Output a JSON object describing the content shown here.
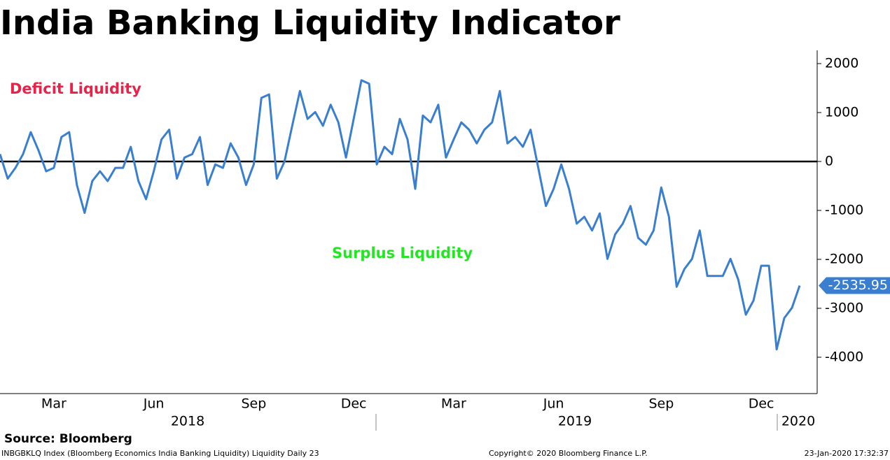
{
  "chart_data": {
    "type": "line",
    "title": "India Banking Liquidity Indicator",
    "annotations": [
      "Deficit Liquidity",
      "Surplus Liquidity"
    ],
    "categories": [
      null,
      null,
      null,
      null,
      null,
      null,
      null,
      "Mar",
      null,
      null,
      null,
      null,
      null,
      null,
      null,
      null,
      null,
      null,
      null,
      null,
      "Jun",
      null,
      null,
      null,
      null,
      null,
      null,
      null,
      null,
      null,
      null,
      null,
      null,
      "Sep",
      null,
      null,
      null,
      null,
      null,
      null,
      null,
      null,
      null,
      null,
      null,
      null,
      "Dec",
      null,
      null,
      null,
      null,
      null,
      null,
      null,
      null,
      null,
      null,
      null,
      null,
      "Mar",
      null,
      null,
      null,
      null,
      null,
      null,
      null,
      null,
      null,
      null,
      null,
      null,
      "Jun",
      null,
      null,
      null,
      null,
      null,
      null,
      null,
      null,
      null,
      null,
      null,
      null,
      null,
      "Sep",
      null,
      null,
      null,
      null,
      null,
      null,
      null,
      null,
      null,
      null,
      null,
      null,
      "Dec",
      null,
      null,
      null,
      null,
      null
    ],
    "year_labels": [
      "2018",
      "2019",
      "2020"
    ],
    "values": [
      150,
      -350,
      -130,
      150,
      600,
      230,
      -200,
      -130,
      500,
      600,
      -480,
      -1050,
      -400,
      -200,
      -400,
      -130,
      -130,
      300,
      -400,
      -770,
      -200,
      450,
      650,
      -350,
      80,
      150,
      500,
      -480,
      -60,
      -130,
      370,
      80,
      -480,
      -60,
      1300,
      1370,
      -350,
      0,
      730,
      1440,
      870,
      1010,
      730,
      1160,
      800,
      80,
      870,
      1660,
      1590,
      -60,
      300,
      150,
      870,
      450,
      -560,
      940,
      800,
      1160,
      80,
      450,
      800,
      650,
      370,
      650,
      800,
      1440,
      370,
      500,
      300,
      650,
      -130,
      -910,
      -560,
      -60,
      -560,
      -1270,
      -1130,
      -1410,
      -1060,
      -1990,
      -1490,
      -1270,
      -910,
      -1560,
      -1700,
      -1410,
      -530,
      -1130,
      -2560,
      -2200,
      -1990,
      -1410,
      -2340,
      -2340,
      -2340,
      -1990,
      -2410,
      -3130,
      -2840,
      -2130,
      -2130,
      -3840,
      -3200,
      -2990,
      -2535.95
    ],
    "color": "#3a7fcf",
    "ylim": [
      -4743,
      2271
    ],
    "yticks": [
      2000,
      1000,
      0,
      -1000,
      -2000,
      -3000,
      -4000
    ],
    "source": "Source: Bloomberg",
    "footer": [
      "INBGBKLQ Index (Bloomberg Economics India Banking Liquidity) Liquidity  Daily 23",
      "Copyright© 2020 Bloomberg Finance L.P.",
      "23-Jan-2020 17:32:37"
    ]
  }
}
